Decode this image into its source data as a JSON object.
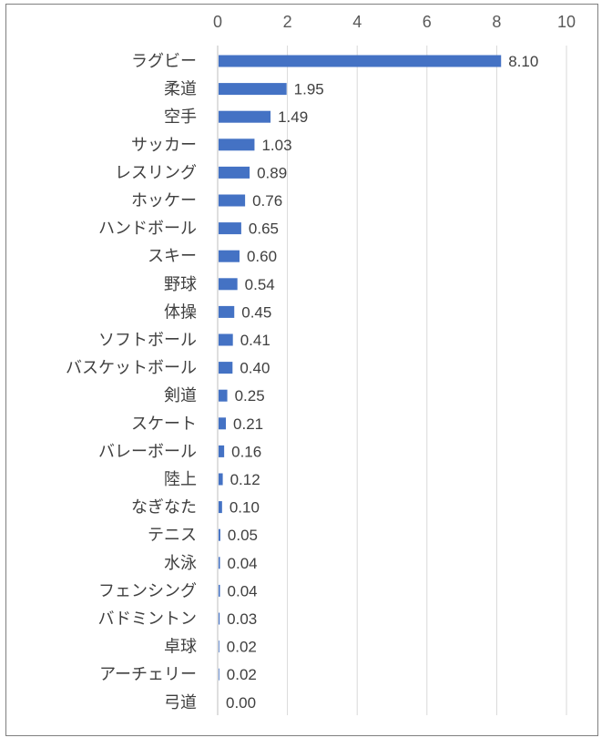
{
  "chart_data": {
    "type": "bar",
    "orientation": "horizontal",
    "categories": [
      "ラグビー",
      "柔道",
      "空手",
      "サッカー",
      "レスリング",
      "ホッケー",
      "ハンドボール",
      "スキー",
      "野球",
      "体操",
      "ソフトボール",
      "バスケットボール",
      "剣道",
      "スケート",
      "バレーボール",
      "陸上",
      "なぎなた",
      "テニス",
      "水泳",
      "フェンシング",
      "バドミントン",
      "卓球",
      "アーチェリー",
      "弓道"
    ],
    "values": [
      8.1,
      1.95,
      1.49,
      1.03,
      0.89,
      0.76,
      0.65,
      0.6,
      0.54,
      0.45,
      0.41,
      0.4,
      0.25,
      0.21,
      0.16,
      0.12,
      0.1,
      0.05,
      0.04,
      0.04,
      0.03,
      0.02,
      0.02,
      0.0
    ],
    "value_labels": [
      "8.10",
      "1.95",
      "1.49",
      "1.03",
      "0.89",
      "0.76",
      "0.65",
      "0.60",
      "0.54",
      "0.45",
      "0.41",
      "0.40",
      "0.25",
      "0.21",
      "0.16",
      "0.12",
      "0.10",
      "0.05",
      "0.04",
      "0.04",
      "0.03",
      "0.02",
      "0.02",
      "0.00"
    ],
    "xlim": [
      0,
      10
    ],
    "xticks": [
      0,
      2,
      4,
      6,
      8,
      10
    ],
    "xtick_labels": [
      "0",
      "2",
      "4",
      "6",
      "8",
      "10"
    ],
    "axis_position": "top",
    "grid": true,
    "legend": "none",
    "title": "",
    "xlabel": "",
    "ylabel": "",
    "colors": {
      "bar": "#4472c4",
      "grid": "#d9d9d9",
      "axis": "#bfbfbf"
    }
  }
}
